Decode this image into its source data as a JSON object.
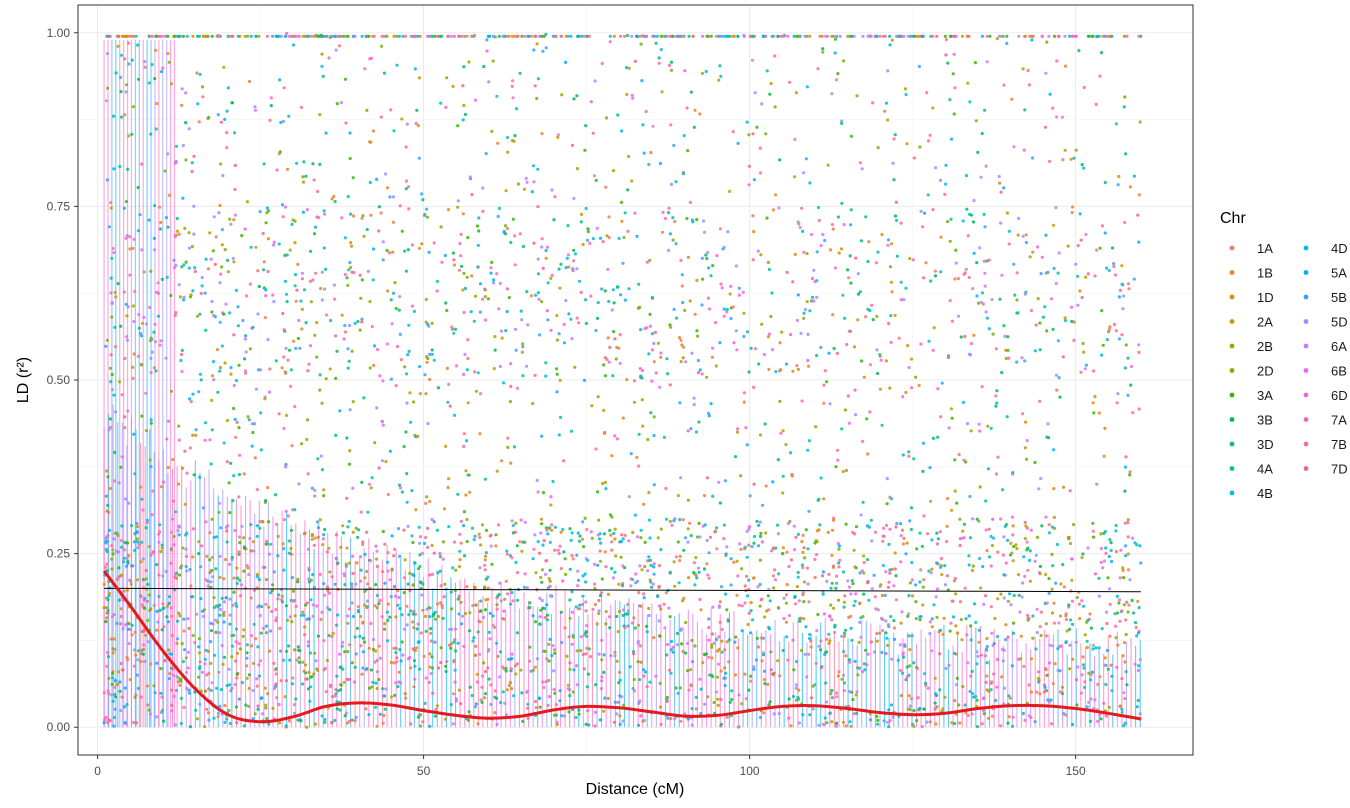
{
  "chart_data": {
    "type": "scatter",
    "xlabel": "Distance (cM)",
    "ylabel": "LD (r²)",
    "xlim": [
      -3,
      168
    ],
    "ylim": [
      -0.04,
      1.04
    ],
    "x_ticks": [
      0,
      50,
      100,
      150
    ],
    "y_ticks": [
      0.0,
      0.25,
      0.5,
      0.75,
      1.0
    ],
    "x_tick_labels": [
      "0",
      "50",
      "100",
      "150"
    ],
    "y_tick_labels": [
      "0.00",
      "0.25",
      "0.50",
      "0.75",
      "1.00"
    ],
    "grid": true,
    "legend": {
      "title": "Chr",
      "placement": "right",
      "entries": [
        {
          "name": "1A",
          "color": "#F8766D"
        },
        {
          "name": "1B",
          "color": "#EA8331"
        },
        {
          "name": "1D",
          "color": "#D89000"
        },
        {
          "name": "2A",
          "color": "#C09B00"
        },
        {
          "name": "2B",
          "color": "#A3A500"
        },
        {
          "name": "2D",
          "color": "#7CAE00"
        },
        {
          "name": "3A",
          "color": "#39B600"
        },
        {
          "name": "3B",
          "color": "#00BB4E"
        },
        {
          "name": "3D",
          "color": "#00BF7D"
        },
        {
          "name": "4A",
          "color": "#00C1A3"
        },
        {
          "name": "4B",
          "color": "#00BFC4"
        },
        {
          "name": "4D",
          "color": "#00BAE0"
        },
        {
          "name": "5A",
          "color": "#00B0F6"
        },
        {
          "name": "5B",
          "color": "#35A2FF"
        },
        {
          "name": "5D",
          "color": "#9590FF"
        },
        {
          "name": "6A",
          "color": "#C77CFF"
        },
        {
          "name": "6B",
          "color": "#E76BF3"
        },
        {
          "name": "6D",
          "color": "#FA62DB"
        },
        {
          "name": "7A",
          "color": "#FF62BC"
        },
        {
          "name": "7B",
          "color": "#FF6C91"
        },
        {
          "name": "7D",
          "color": "#FF5F8A"
        }
      ]
    },
    "reference_line": {
      "type": "horizontal",
      "y_start": 0.2,
      "y_end": 0.195,
      "x_start": 1,
      "x_end": 160,
      "color": "#000000"
    },
    "decay_curve": {
      "color": "#E41A1C",
      "x": [
        1,
        5,
        10,
        15,
        20,
        25,
        30,
        35,
        40,
        45,
        50,
        55,
        60,
        65,
        70,
        75,
        80,
        85,
        90,
        95,
        100,
        105,
        110,
        115,
        120,
        125,
        130,
        135,
        140,
        145,
        150,
        155,
        160
      ],
      "y": [
        0.225,
        0.175,
        0.11,
        0.055,
        0.018,
        0.008,
        0.015,
        0.03,
        0.035,
        0.032,
        0.024,
        0.017,
        0.013,
        0.016,
        0.025,
        0.03,
        0.028,
        0.022,
        0.016,
        0.017,
        0.024,
        0.03,
        0.031,
        0.027,
        0.021,
        0.018,
        0.02,
        0.027,
        0.031,
        0.031,
        0.027,
        0.02,
        0.012
      ]
    },
    "point_cloud": {
      "x_range": [
        1,
        160
      ],
      "y_range": [
        0,
        1
      ],
      "description_note": ""
    }
  }
}
